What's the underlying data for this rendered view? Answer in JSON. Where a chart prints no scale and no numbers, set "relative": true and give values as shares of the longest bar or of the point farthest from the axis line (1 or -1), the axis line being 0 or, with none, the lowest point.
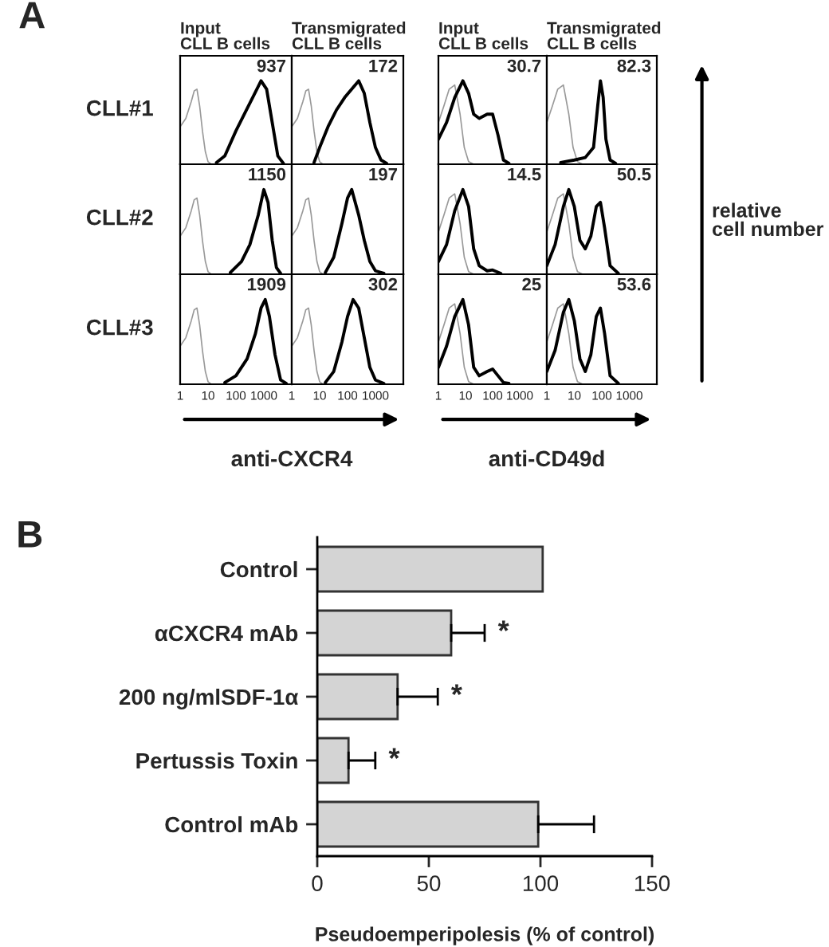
{
  "chart_data": [
    {
      "type": "line",
      "relative": true,
      "title": "Input\nCLL B cells",
      "ylabel": "CLL#1",
      "log": "x",
      "xlim": [
        1,
        10000
      ],
      "xticks": [
        1,
        10,
        100,
        1000
      ],
      "tick_labels": false,
      "annotations": [
        "937",
        "A"
      ],
      "series": [
        {
          "color": "#999999",
          "x": [
            1,
            1.6,
            2.5,
            3.2,
            4,
            5,
            6.3,
            8,
            10,
            13
          ],
          "values": [
            0.45,
            0.55,
            0.75,
            0.88,
            0.9,
            0.7,
            0.4,
            0.15,
            0.03,
            0
          ]
        },
        {
          "color": "#000000",
          "x": [
            20,
            40,
            100,
            200,
            398,
            794,
            1259,
            1995,
            3162,
            5012
          ],
          "values": [
            0.02,
            0.1,
            0.4,
            0.6,
            0.8,
            1.0,
            0.9,
            0.5,
            0.1,
            0.01
          ]
        }
      ]
    },
    {
      "type": "line",
      "relative": true,
      "title": "Transmigrated\nCLL B cells",
      "log": "x",
      "xlim": [
        1,
        10000
      ],
      "xticks": [
        1,
        10,
        100,
        1000
      ],
      "tick_labels": false,
      "annotations": [
        "172"
      ],
      "series": [
        {
          "color": "#999999",
          "x": [
            1,
            1.6,
            2.5,
            3.2,
            4,
            5,
            6.3,
            8,
            10,
            13
          ],
          "values": [
            0.45,
            0.55,
            0.75,
            0.88,
            0.9,
            0.7,
            0.4,
            0.15,
            0.03,
            0
          ]
        },
        {
          "color": "#000000",
          "x": [
            6.3,
            10,
            20,
            40,
            79,
            158,
            251,
            398,
            631,
            1000,
            1585,
            2512
          ],
          "values": [
            0.02,
            0.2,
            0.45,
            0.65,
            0.8,
            0.92,
            1.0,
            0.85,
            0.5,
            0.2,
            0.05,
            0.01
          ]
        }
      ]
    },
    {
      "type": "line",
      "relative": true,
      "title": "Input\nCLL B cells",
      "log": "x",
      "xlim": [
        1,
        10000
      ],
      "xticks": [
        1,
        10,
        100,
        1000
      ],
      "tick_labels": false,
      "annotations": [
        "30.7"
      ],
      "series": [
        {
          "color": "#999999",
          "x": [
            1,
            1.6,
            2.5,
            4,
            6.3,
            9,
            13,
            20
          ],
          "values": [
            0.5,
            0.7,
            0.9,
            0.95,
            0.6,
            0.2,
            0.03,
            0
          ]
        },
        {
          "color": "#000000",
          "x": [
            1,
            2,
            4,
            8,
            13,
            20,
            32,
            63,
            100,
            158,
            251,
            398
          ],
          "values": [
            0.3,
            0.5,
            0.8,
            1.0,
            0.85,
            0.6,
            0.55,
            0.6,
            0.6,
            0.35,
            0.05,
            0.01
          ]
        }
      ]
    },
    {
      "type": "line",
      "relative": true,
      "title": "Transmigrated\nCLL B cells",
      "log": "x",
      "xlim": [
        1,
        10000
      ],
      "xticks": [
        1,
        10,
        100,
        1000
      ],
      "tick_labels": false,
      "annotations": [
        "82.3"
      ],
      "series": [
        {
          "color": "#999999",
          "x": [
            1,
            1.6,
            2.5,
            4,
            6.3,
            9,
            13,
            20
          ],
          "values": [
            0.5,
            0.7,
            0.9,
            0.95,
            0.6,
            0.2,
            0.03,
            0
          ]
        },
        {
          "color": "#000000",
          "x": [
            3.2,
            10,
            25,
            50,
            71,
            89,
            112,
            141,
            200,
            316
          ],
          "values": [
            0.02,
            0.05,
            0.08,
            0.2,
            0.7,
            1.0,
            0.8,
            0.3,
            0.05,
            0.01
          ]
        }
      ]
    },
    {
      "type": "line",
      "relative": true,
      "ylabel": "CLL#2",
      "log": "x",
      "xlim": [
        1,
        10000
      ],
      "xticks": [
        1,
        10,
        100,
        1000
      ],
      "tick_labels": false,
      "annotations": [
        "1150"
      ],
      "series": [
        {
          "color": "#999999",
          "x": [
            1,
            1.6,
            2.5,
            3.2,
            4,
            5,
            6.3,
            8,
            10,
            13
          ],
          "values": [
            0.45,
            0.55,
            0.75,
            0.88,
            0.9,
            0.7,
            0.4,
            0.15,
            0.03,
            0
          ]
        },
        {
          "color": "#000000",
          "x": [
            63,
            158,
            316,
            631,
            1000,
            1413,
            1995,
            2818,
            3981
          ],
          "values": [
            0.02,
            0.15,
            0.35,
            0.7,
            1.0,
            0.85,
            0.4,
            0.08,
            0.01
          ]
        }
      ]
    },
    {
      "type": "line",
      "relative": true,
      "log": "x",
      "xlim": [
        1,
        10000
      ],
      "xticks": [
        1,
        10,
        100,
        1000
      ],
      "tick_labels": false,
      "annotations": [
        "197"
      ],
      "series": [
        {
          "color": "#999999",
          "x": [
            1,
            1.6,
            2.5,
            3.2,
            4,
            5,
            6.3,
            8,
            10,
            13
          ],
          "values": [
            0.45,
            0.55,
            0.75,
            0.88,
            0.9,
            0.7,
            0.4,
            0.15,
            0.03,
            0
          ]
        },
        {
          "color": "#000000",
          "x": [
            16,
            32,
            63,
            100,
            141,
            251,
            398,
            631,
            1000,
            1995
          ],
          "values": [
            0.02,
            0.2,
            0.6,
            0.9,
            1.0,
            0.7,
            0.4,
            0.15,
            0.04,
            0.01
          ]
        }
      ]
    },
    {
      "type": "line",
      "relative": true,
      "log": "x",
      "xlim": [
        1,
        10000
      ],
      "xticks": [
        1,
        10,
        100,
        1000
      ],
      "tick_labels": false,
      "annotations": [
        "14.5"
      ],
      "series": [
        {
          "color": "#999999",
          "x": [
            1,
            1.6,
            2.5,
            4,
            6.3,
            9,
            13,
            20
          ],
          "values": [
            0.5,
            0.7,
            0.9,
            0.95,
            0.6,
            0.2,
            0.03,
            0
          ]
        },
        {
          "color": "#000000",
          "x": [
            1,
            2,
            4,
            8,
            13,
            20,
            32,
            63,
            100,
            200
          ],
          "values": [
            0.15,
            0.35,
            0.75,
            1.0,
            0.8,
            0.3,
            0.1,
            0.04,
            0.05,
            0.01
          ]
        }
      ]
    },
    {
      "type": "line",
      "relative": true,
      "ylabel": "relative\ncell number",
      "log": "x",
      "xlim": [
        1,
        10000
      ],
      "xticks": [
        1,
        10,
        100,
        1000
      ],
      "tick_labels": false,
      "annotations": [
        "50.5"
      ],
      "series": [
        {
          "color": "#999999",
          "x": [
            1,
            1.6,
            2.5,
            4,
            6.3,
            9,
            13,
            20
          ],
          "values": [
            0.5,
            0.7,
            0.9,
            0.95,
            0.6,
            0.2,
            0.03,
            0
          ]
        },
        {
          "color": "#000000",
          "x": [
            1,
            2,
            4,
            6.3,
            10,
            16,
            25,
            40,
            63,
            89,
            126,
            200,
            398
          ],
          "values": [
            0.1,
            0.35,
            0.8,
            1.0,
            0.8,
            0.4,
            0.3,
            0.45,
            0.8,
            0.85,
            0.55,
            0.1,
            0.01
          ]
        }
      ]
    },
    {
      "type": "line",
      "relative": true,
      "ylabel": "CLL#3",
      "xlabel": "anti-CXCR4",
      "log": "x",
      "xlim": [
        1,
        10000
      ],
      "xticks": [
        1,
        10,
        100,
        1000
      ],
      "tick_labels": "x",
      "annotations": [
        "1909"
      ],
      "series": [
        {
          "color": "#999999",
          "x": [
            1,
            1.6,
            2.5,
            3.2,
            4,
            5,
            6.3,
            8,
            10,
            13
          ],
          "values": [
            0.45,
            0.55,
            0.75,
            0.88,
            0.9,
            0.7,
            0.4,
            0.15,
            0.03,
            0
          ]
        },
        {
          "color": "#000000",
          "x": [
            40,
            100,
            251,
            501,
            794,
            1122,
            1585,
            2512,
            3981,
            6310
          ],
          "values": [
            0.02,
            0.1,
            0.3,
            0.6,
            0.9,
            1.0,
            0.8,
            0.35,
            0.05,
            0.01
          ]
        }
      ]
    },
    {
      "type": "line",
      "relative": true,
      "log": "x",
      "xlim": [
        1,
        10000
      ],
      "xticks": [
        1,
        10,
        100,
        1000
      ],
      "tick_labels": "x",
      "annotations": [
        "302"
      ],
      "series": [
        {
          "color": "#999999",
          "x": [
            1,
            1.6,
            2.5,
            3.2,
            4,
            5,
            6.3,
            8,
            10,
            13
          ],
          "values": [
            0.45,
            0.55,
            0.75,
            0.88,
            0.9,
            0.7,
            0.4,
            0.15,
            0.03,
            0
          ]
        },
        {
          "color": "#000000",
          "x": [
            16,
            32,
            63,
            100,
            158,
            251,
            398,
            631,
            1000,
            1995
          ],
          "values": [
            0.02,
            0.15,
            0.5,
            0.8,
            1.0,
            0.9,
            0.55,
            0.2,
            0.05,
            0.01
          ]
        }
      ]
    },
    {
      "type": "line",
      "relative": true,
      "xlabel": "anti-CD49d",
      "log": "x",
      "xlim": [
        1,
        10000
      ],
      "xticks": [
        1,
        10,
        100,
        1000
      ],
      "tick_labels": "x",
      "annotations": [
        "25"
      ],
      "series": [
        {
          "color": "#999999",
          "x": [
            1,
            1.6,
            2.5,
            4,
            6.3,
            9,
            13,
            20
          ],
          "values": [
            0.5,
            0.7,
            0.9,
            0.95,
            0.6,
            0.2,
            0.03,
            0
          ]
        },
        {
          "color": "#000000",
          "x": [
            1,
            2,
            4,
            8,
            13,
            20,
            32,
            63,
            100,
            158,
            251,
            398
          ],
          "values": [
            0.2,
            0.45,
            0.8,
            1.0,
            0.7,
            0.2,
            0.1,
            0.15,
            0.18,
            0.1,
            0.02,
            0.01
          ]
        }
      ]
    },
    {
      "type": "line",
      "relative": true,
      "log": "x",
      "xlim": [
        1,
        10000
      ],
      "xticks": [
        1,
        10,
        100,
        1000
      ],
      "tick_labels": "x",
      "annotations": [
        "53.6"
      ],
      "series": [
        {
          "color": "#999999",
          "x": [
            1,
            1.6,
            2.5,
            4,
            6.3,
            9,
            13,
            20
          ],
          "values": [
            0.5,
            0.7,
            0.9,
            0.95,
            0.6,
            0.2,
            0.03,
            0
          ]
        },
        {
          "color": "#000000",
          "x": [
            1,
            2,
            4,
            6.3,
            10,
            16,
            25,
            40,
            63,
            89,
            126,
            200,
            398
          ],
          "values": [
            0.15,
            0.4,
            0.85,
            1.0,
            0.75,
            0.3,
            0.15,
            0.35,
            0.8,
            0.9,
            0.6,
            0.1,
            0.01
          ]
        }
      ]
    },
    {
      "type": "bar",
      "orientation": "horizontal",
      "categories": [
        "Control",
        "αCXCR4 mAb",
        "200 ng/mlSDF-1α",
        "Pertussis Toxin",
        "Control mAb"
      ],
      "values": [
        101,
        60,
        36,
        14,
        99
      ],
      "errors": [
        null,
        15,
        18,
        12,
        25
      ],
      "color": "#d4d4d4",
      "xlabel": "Pseudoemperipolesis (% of control)",
      "xlim": [
        0,
        150
      ],
      "xticks": [
        0,
        50,
        100,
        150
      ],
      "grid": false,
      "legend": false,
      "annotations": [
        "B",
        "*",
        "*",
        "*"
      ]
    }
  ]
}
